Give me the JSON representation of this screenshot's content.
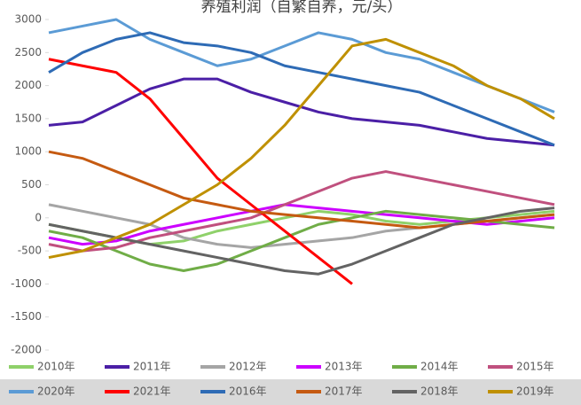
{
  "chart_data": {
    "type": "line",
    "title": "养殖利润（自繁自养，元/头）",
    "categories": [
      null,
      null,
      null,
      null,
      null,
      null,
      null,
      null,
      null,
      null,
      null,
      null,
      null,
      null,
      null,
      null
    ],
    "ylim": [
      -2000,
      3000
    ],
    "yticks": [
      -2000,
      -1500,
      -1000,
      -500,
      0,
      500,
      1000,
      1500,
      2000,
      2500,
      3000
    ],
    "grid": false,
    "legend": "bottom",
    "series": [
      {
        "name": "2010年",
        "color": "#8fd16a",
        "values": [
          -100,
          -200,
          -300,
          -400,
          -350,
          -200,
          -100,
          0,
          100,
          50,
          -50,
          -100,
          -50,
          0,
          50,
          100
        ]
      },
      {
        "name": "2011年",
        "color": "#4b1fa6",
        "values": [
          1400,
          1450,
          1700,
          1950,
          2100,
          2100,
          1900,
          1750,
          1600,
          1500,
          1450,
          1400,
          1300,
          1200,
          1150,
          1100
        ]
      },
      {
        "name": "2012年",
        "color": "#a5a5a5",
        "values": [
          200,
          100,
          0,
          -100,
          -300,
          -400,
          -450,
          -400,
          -350,
          -300,
          -200,
          -150,
          -100,
          -50,
          0,
          50
        ]
      },
      {
        "name": "2013年",
        "color": "#cc00ff",
        "values": [
          -300,
          -400,
          -350,
          -200,
          -100,
          0,
          100,
          200,
          150,
          100,
          50,
          0,
          -50,
          -100,
          -50,
          0
        ]
      },
      {
        "name": "2014年",
        "color": "#70ad47",
        "values": [
          -200,
          -300,
          -500,
          -700,
          -800,
          -700,
          -500,
          -300,
          -100,
          0,
          100,
          50,
          0,
          -50,
          -100,
          -150
        ]
      },
      {
        "name": "2015年",
        "color": "#c0507e",
        "values": [
          -400,
          -500,
          -450,
          -300,
          -200,
          -100,
          0,
          200,
          400,
          600,
          700,
          600,
          500,
          400,
          300,
          200
        ]
      },
      {
        "name": "2020年",
        "color": "#5b9bd5",
        "values": [
          2800,
          2900,
          3000,
          2700,
          2500,
          2300,
          2400,
          2600,
          2800,
          2700,
          2500,
          2400,
          2200,
          2000,
          1800,
          1600
        ]
      },
      {
        "name": "2021年",
        "color": "#ff0000",
        "values": [
          2400,
          2300,
          2200,
          1800,
          1200,
          600,
          200,
          -200,
          -600,
          -1000,
          null,
          null,
          null,
          null,
          null,
          null
        ]
      },
      {
        "name": "2016年",
        "color": "#2e6bb5",
        "values": [
          2200,
          2500,
          2700,
          2800,
          2650,
          2600,
          2500,
          2300,
          2200,
          2100,
          2000,
          1900,
          1700,
          1500,
          1300,
          1100
        ]
      },
      {
        "name": "2017年",
        "color": "#c55a11",
        "values": [
          1000,
          900,
          700,
          500,
          300,
          200,
          100,
          50,
          0,
          -50,
          -100,
          -150,
          -100,
          -50,
          0,
          50
        ]
      },
      {
        "name": "2018年",
        "color": "#636363",
        "values": [
          -100,
          -200,
          -300,
          -400,
          -500,
          -600,
          -700,
          -800,
          -850,
          -700,
          -500,
          -300,
          -100,
          0,
          100,
          150
        ]
      },
      {
        "name": "2019年",
        "color": "#bf9000",
        "values": [
          -600,
          -500,
          -300,
          -100,
          200,
          500,
          900,
          1400,
          2000,
          2600,
          2700,
          2500,
          2300,
          2000,
          1800,
          1500
        ]
      }
    ]
  }
}
